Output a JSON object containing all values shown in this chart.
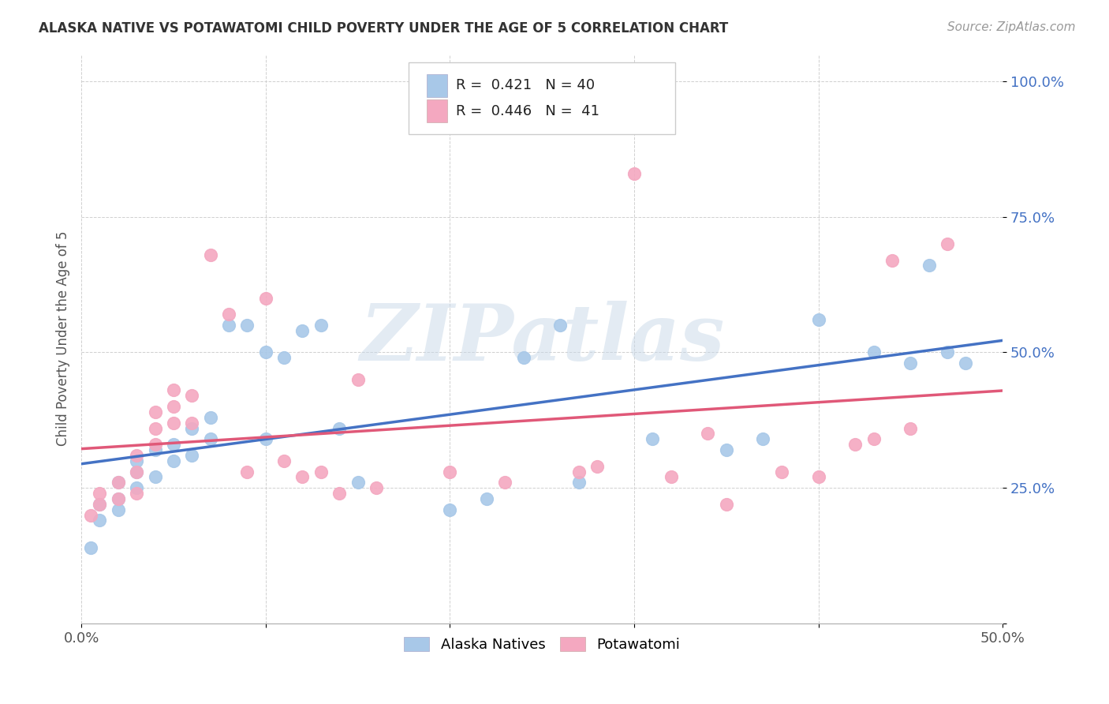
{
  "title": "ALASKA NATIVE VS POTAWATOMI CHILD POVERTY UNDER THE AGE OF 5 CORRELATION CHART",
  "source": "Source: ZipAtlas.com",
  "ylabel": "Child Poverty Under the Age of 5",
  "xlim": [
    0.0,
    0.5
  ],
  "ylim": [
    0.0,
    1.05
  ],
  "yticks": [
    0.0,
    0.25,
    0.5,
    0.75,
    1.0
  ],
  "ytick_labels": [
    "",
    "25.0%",
    "50.0%",
    "75.0%",
    "100.0%"
  ],
  "xticks": [
    0.0,
    0.1,
    0.2,
    0.3,
    0.4,
    0.5
  ],
  "xtick_labels": [
    "0.0%",
    "",
    "",
    "",
    "",
    "50.0%"
  ],
  "alaska_color": "#a8c8e8",
  "potawatomi_color": "#f4a8c0",
  "alaska_line_color": "#4472c4",
  "potawatomi_line_color": "#e05878",
  "legend_r_alaska": "0.421",
  "legend_n_alaska": "40",
  "legend_r_potawatomi": "0.446",
  "legend_n_potawatomi": "41",
  "background_color": "#ffffff",
  "watermark": "ZIPatlas",
  "alaska_x": [
    0.005,
    0.01,
    0.01,
    0.02,
    0.02,
    0.02,
    0.03,
    0.03,
    0.03,
    0.04,
    0.04,
    0.05,
    0.05,
    0.06,
    0.06,
    0.07,
    0.07,
    0.08,
    0.09,
    0.1,
    0.1,
    0.11,
    0.12,
    0.13,
    0.14,
    0.15,
    0.2,
    0.22,
    0.24,
    0.26,
    0.27,
    0.31,
    0.35,
    0.37,
    0.4,
    0.43,
    0.45,
    0.46,
    0.47,
    0.48
  ],
  "alaska_y": [
    0.14,
    0.19,
    0.22,
    0.21,
    0.23,
    0.26,
    0.25,
    0.28,
    0.3,
    0.27,
    0.32,
    0.3,
    0.33,
    0.31,
    0.36,
    0.34,
    0.38,
    0.55,
    0.55,
    0.34,
    0.5,
    0.49,
    0.54,
    0.55,
    0.36,
    0.26,
    0.21,
    0.23,
    0.49,
    0.55,
    0.26,
    0.34,
    0.32,
    0.34,
    0.56,
    0.5,
    0.48,
    0.66,
    0.5,
    0.48
  ],
  "potawatomi_x": [
    0.005,
    0.01,
    0.01,
    0.02,
    0.02,
    0.03,
    0.03,
    0.03,
    0.04,
    0.04,
    0.04,
    0.05,
    0.05,
    0.05,
    0.06,
    0.06,
    0.07,
    0.08,
    0.09,
    0.1,
    0.11,
    0.12,
    0.13,
    0.14,
    0.15,
    0.16,
    0.2,
    0.23,
    0.27,
    0.28,
    0.3,
    0.32,
    0.34,
    0.35,
    0.38,
    0.4,
    0.42,
    0.43,
    0.44,
    0.45,
    0.47
  ],
  "potawatomi_y": [
    0.2,
    0.22,
    0.24,
    0.23,
    0.26,
    0.24,
    0.28,
    0.31,
    0.33,
    0.36,
    0.39,
    0.37,
    0.4,
    0.43,
    0.37,
    0.42,
    0.68,
    0.57,
    0.28,
    0.6,
    0.3,
    0.27,
    0.28,
    0.24,
    0.45,
    0.25,
    0.28,
    0.26,
    0.28,
    0.29,
    0.83,
    0.27,
    0.35,
    0.22,
    0.28,
    0.27,
    0.33,
    0.34,
    0.67,
    0.36,
    0.7
  ]
}
